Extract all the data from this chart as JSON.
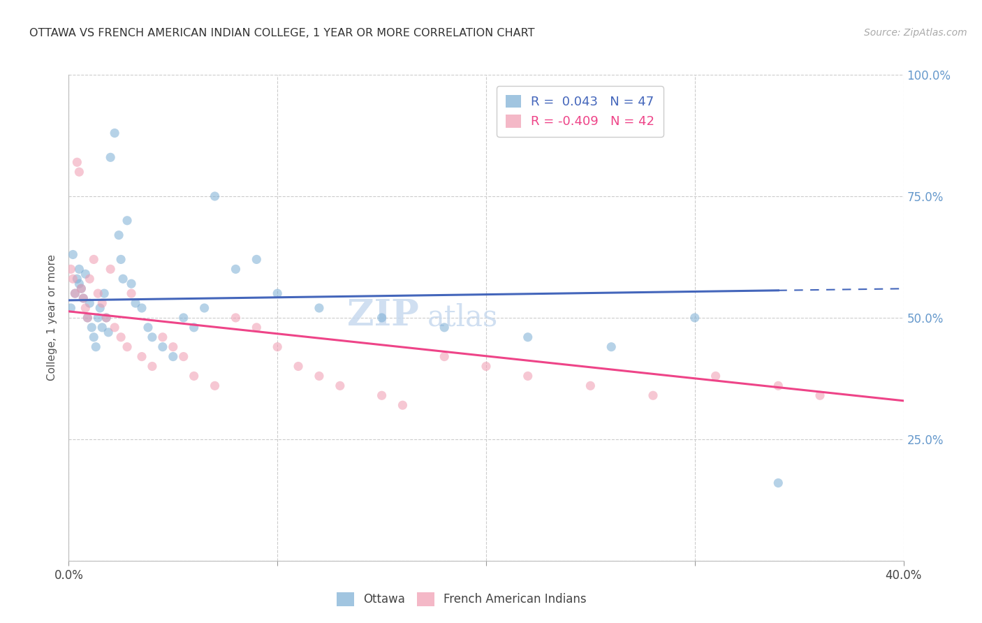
{
  "title": "OTTAWA VS FRENCH AMERICAN INDIAN COLLEGE, 1 YEAR OR MORE CORRELATION CHART",
  "source": "Source: ZipAtlas.com",
  "ylabel": "College, 1 year or more",
  "xlim": [
    0.0,
    0.4
  ],
  "ylim": [
    0.0,
    1.0
  ],
  "xticks": [
    0.0,
    0.1,
    0.2,
    0.3,
    0.4
  ],
  "xtick_labels_show": [
    "0.0%",
    "",
    "",
    "",
    "40.0%"
  ],
  "yticks": [
    0.0,
    0.25,
    0.5,
    0.75,
    1.0
  ],
  "ytick_labels": [
    "",
    "25.0%",
    "50.0%",
    "75.0%",
    "100.0%"
  ],
  "grid_color": "#cccccc",
  "background_color": "#ffffff",
  "ottawa_color": "#7aadd4",
  "fai_color": "#f09ab0",
  "ottawa_R": 0.043,
  "ottawa_N": 47,
  "fai_R": -0.409,
  "fai_N": 42,
  "legend_box_color": "#ffffff",
  "legend_border_color": "#cccccc",
  "ottawa_x": [
    0.001,
    0.002,
    0.003,
    0.004,
    0.005,
    0.005,
    0.006,
    0.007,
    0.008,
    0.009,
    0.01,
    0.011,
    0.012,
    0.013,
    0.014,
    0.015,
    0.016,
    0.017,
    0.018,
    0.019,
    0.02,
    0.022,
    0.024,
    0.025,
    0.026,
    0.028,
    0.03,
    0.032,
    0.035,
    0.038,
    0.04,
    0.045,
    0.05,
    0.055,
    0.06,
    0.065,
    0.07,
    0.08,
    0.09,
    0.1,
    0.12,
    0.15,
    0.18,
    0.22,
    0.26,
    0.3,
    0.34
  ],
  "ottawa_y": [
    0.52,
    0.63,
    0.55,
    0.58,
    0.57,
    0.6,
    0.56,
    0.54,
    0.59,
    0.5,
    0.53,
    0.48,
    0.46,
    0.44,
    0.5,
    0.52,
    0.48,
    0.55,
    0.5,
    0.47,
    0.83,
    0.88,
    0.67,
    0.62,
    0.58,
    0.7,
    0.57,
    0.53,
    0.52,
    0.48,
    0.46,
    0.44,
    0.42,
    0.5,
    0.48,
    0.52,
    0.75,
    0.6,
    0.62,
    0.55,
    0.52,
    0.5,
    0.48,
    0.46,
    0.44,
    0.5,
    0.16
  ],
  "fai_x": [
    0.001,
    0.002,
    0.003,
    0.004,
    0.005,
    0.006,
    0.007,
    0.008,
    0.009,
    0.01,
    0.012,
    0.014,
    0.016,
    0.018,
    0.02,
    0.022,
    0.025,
    0.028,
    0.03,
    0.035,
    0.04,
    0.045,
    0.05,
    0.055,
    0.06,
    0.07,
    0.08,
    0.09,
    0.1,
    0.11,
    0.12,
    0.13,
    0.15,
    0.16,
    0.18,
    0.2,
    0.22,
    0.25,
    0.28,
    0.31,
    0.34,
    0.36
  ],
  "fai_y": [
    0.6,
    0.58,
    0.55,
    0.82,
    0.8,
    0.56,
    0.54,
    0.52,
    0.5,
    0.58,
    0.62,
    0.55,
    0.53,
    0.5,
    0.6,
    0.48,
    0.46,
    0.44,
    0.55,
    0.42,
    0.4,
    0.46,
    0.44,
    0.42,
    0.38,
    0.36,
    0.5,
    0.48,
    0.44,
    0.4,
    0.38,
    0.36,
    0.34,
    0.32,
    0.42,
    0.4,
    0.38,
    0.36,
    0.34,
    0.38,
    0.36,
    0.34
  ],
  "watermark_line1": "ZIP",
  "watermark_line2": "atlas",
  "watermark_color": "#c5d8ee",
  "title_color": "#333333",
  "axis_label_color": "#555555",
  "right_axis_color": "#6699cc",
  "trend_blue": "#4466bb",
  "trend_pink": "#ee4488"
}
